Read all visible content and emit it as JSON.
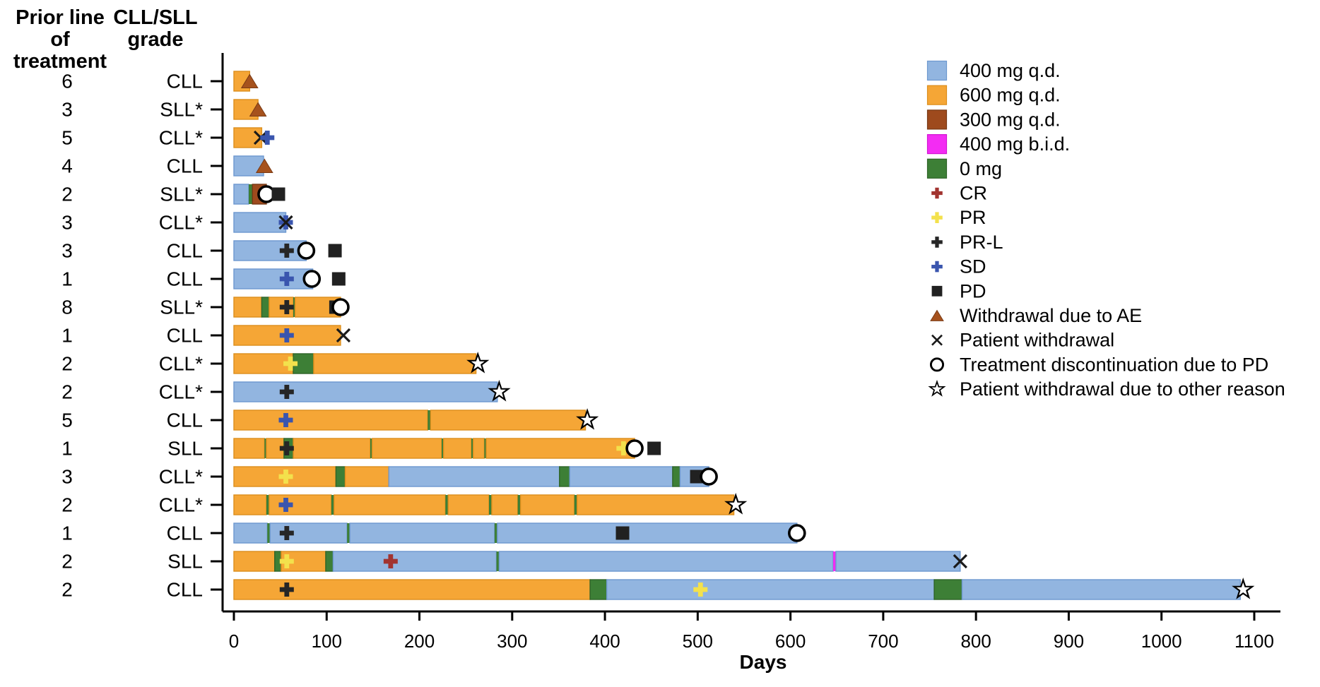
{
  "headers": {
    "prior_line": [
      "Prior line",
      "of treatment"
    ],
    "grade": [
      "CLL/SLL",
      "grade"
    ]
  },
  "axis": {
    "label": "Days",
    "ticks": [
      0,
      100,
      200,
      300,
      400,
      500,
      600,
      700,
      800,
      900,
      1000,
      1100
    ]
  },
  "colors": {
    "dose": {
      "400": "#92b5e0",
      "600": "#f5a636",
      "300": "#9e4a1d",
      "400bid": "#f32cf3",
      "0": "#3d7f36"
    },
    "doseEdge": {
      "400": "#6d98cf",
      "600": "#dc8e1c",
      "300": "#773916",
      "400bid": "#d214d2",
      "0": "#2f6428"
    },
    "marker": {
      "CR": "#a23430",
      "PR": "#f3e14c",
      "PRL": "#262626",
      "SD": "#3a55ae",
      "PD": "#212121",
      "AE": "#a6521d"
    },
    "axis": "#000000"
  },
  "legend": {
    "dose_items": [
      {
        "dose": "400",
        "label": "400 mg q.d."
      },
      {
        "dose": "600",
        "label": "600 mg q.d."
      },
      {
        "dose": "300",
        "label": "300 mg q.d."
      },
      {
        "dose": "400bid",
        "label": "400 mg b.i.d."
      },
      {
        "dose": "0",
        "label": "0 mg"
      }
    ],
    "marker_items": [
      {
        "type": "CR",
        "label": "CR"
      },
      {
        "type": "PR",
        "label": "PR"
      },
      {
        "type": "PRL",
        "label": "PR-L"
      },
      {
        "type": "SD",
        "label": "SD"
      },
      {
        "type": "PD",
        "label": "PD"
      },
      {
        "type": "AE",
        "label": "Withdrawal due to AE"
      },
      {
        "type": "PW",
        "label": "Patient withdrawal"
      },
      {
        "type": "TD",
        "label": "Treatment discontinuation due to PD"
      },
      {
        "type": "OTHER",
        "label": "Patient withdrawal due to other reason"
      }
    ]
  },
  "chart_data": {
    "type": "swimmer-bar",
    "x_unit": "Days",
    "x_range": [
      0,
      1100
    ],
    "rows": [
      {
        "prior": "6",
        "grade": "CLL",
        "segments": [
          {
            "dose": "600",
            "start": 0,
            "end": 17
          }
        ],
        "markers": [
          {
            "type": "AE",
            "day": 17
          }
        ]
      },
      {
        "prior": "3",
        "grade": "SLL*",
        "segments": [
          {
            "dose": "600",
            "start": 0,
            "end": 26
          }
        ],
        "markers": [
          {
            "type": "AE",
            "day": 26
          }
        ]
      },
      {
        "prior": "5",
        "grade": "CLL*",
        "segments": [
          {
            "dose": "600",
            "start": 0,
            "end": 30
          }
        ],
        "markers": [
          {
            "type": "PW",
            "day": 29
          },
          {
            "type": "SD",
            "day": 36
          }
        ]
      },
      {
        "prior": "4",
        "grade": "CLL",
        "segments": [
          {
            "dose": "400",
            "start": 0,
            "end": 32
          }
        ],
        "markers": [
          {
            "type": "AE",
            "day": 33
          }
        ]
      },
      {
        "prior": "2",
        "grade": "SLL*",
        "segments": [
          {
            "dose": "400",
            "start": 0,
            "end": 16
          },
          {
            "dose": "0",
            "start": 16,
            "end": 20
          },
          {
            "dose": "300",
            "start": 20,
            "end": 35
          }
        ],
        "markers": [
          {
            "type": "TD",
            "day": 35
          },
          {
            "type": "PD",
            "day": 48
          }
        ]
      },
      {
        "prior": "3",
        "grade": "CLL*",
        "segments": [
          {
            "dose": "400",
            "start": 0,
            "end": 56
          }
        ],
        "markers": [
          {
            "type": "SD",
            "day": 56
          },
          {
            "type": "PW",
            "day": 56
          }
        ]
      },
      {
        "prior": "3",
        "grade": "CLL",
        "segments": [
          {
            "dose": "400",
            "start": 0,
            "end": 78
          }
        ],
        "markers": [
          {
            "type": "PRL",
            "day": 57
          },
          {
            "type": "TD",
            "day": 78
          },
          {
            "type": "PD",
            "day": 109
          }
        ]
      },
      {
        "prior": "1",
        "grade": "CLL",
        "segments": [
          {
            "dose": "400",
            "start": 0,
            "end": 85
          }
        ],
        "markers": [
          {
            "type": "SD",
            "day": 57
          },
          {
            "type": "TD",
            "day": 84
          },
          {
            "type": "PD",
            "day": 113
          }
        ]
      },
      {
        "prior": "8",
        "grade": "SLL*",
        "segments": [
          {
            "dose": "600",
            "start": 0,
            "end": 30
          },
          {
            "dose": "0",
            "start": 30,
            "end": 38
          },
          {
            "dose": "600",
            "start": 38,
            "end": 64
          },
          {
            "dose": "0",
            "start": 64,
            "end": 66
          },
          {
            "dose": "600",
            "start": 66,
            "end": 115
          }
        ],
        "markers": [
          {
            "type": "PRL",
            "day": 57
          },
          {
            "type": "PD",
            "day": 110
          },
          {
            "type": "TD",
            "day": 115
          }
        ]
      },
      {
        "prior": "1",
        "grade": "CLL",
        "segments": [
          {
            "dose": "600",
            "start": 0,
            "end": 115
          }
        ],
        "markers": [
          {
            "type": "SD",
            "day": 57
          },
          {
            "type": "PW",
            "day": 118
          }
        ]
      },
      {
        "prior": "2",
        "grade": "CLL*",
        "segments": [
          {
            "dose": "600",
            "start": 0,
            "end": 64
          },
          {
            "dose": "0",
            "start": 64,
            "end": 86
          },
          {
            "dose": "600",
            "start": 86,
            "end": 261
          }
        ],
        "markers": [
          {
            "type": "PR",
            "day": 61
          },
          {
            "type": "OTHER",
            "day": 263
          }
        ]
      },
      {
        "prior": "2",
        "grade": "CLL*",
        "segments": [
          {
            "dose": "400",
            "start": 0,
            "end": 284
          }
        ],
        "markers": [
          {
            "type": "PRL",
            "day": 57
          },
          {
            "type": "OTHER",
            "day": 286
          }
        ]
      },
      {
        "prior": "5",
        "grade": "CLL",
        "segments": [
          {
            "dose": "600",
            "start": 0,
            "end": 209
          },
          {
            "dose": "0",
            "start": 209,
            "end": 212
          },
          {
            "dose": "600",
            "start": 212,
            "end": 379
          }
        ],
        "markers": [
          {
            "type": "SD",
            "day": 56
          },
          {
            "type": "OTHER",
            "day": 381
          }
        ]
      },
      {
        "prior": "1",
        "grade": "SLL",
        "segments": [
          {
            "dose": "600",
            "start": 0,
            "end": 33
          },
          {
            "dose": "0",
            "start": 33,
            "end": 35
          },
          {
            "dose": "600",
            "start": 35,
            "end": 54
          },
          {
            "dose": "0",
            "start": 54,
            "end": 64
          },
          {
            "dose": "600",
            "start": 64,
            "end": 147
          },
          {
            "dose": "0",
            "start": 147,
            "end": 149
          },
          {
            "dose": "600",
            "start": 149,
            "end": 224
          },
          {
            "dose": "0",
            "start": 224,
            "end": 226
          },
          {
            "dose": "600",
            "start": 226,
            "end": 256
          },
          {
            "dose": "0",
            "start": 256,
            "end": 258
          },
          {
            "dose": "600",
            "start": 258,
            "end": 270
          },
          {
            "dose": "0",
            "start": 270,
            "end": 272
          },
          {
            "dose": "600",
            "start": 272,
            "end": 432
          }
        ],
        "markers": [
          {
            "type": "PRL",
            "day": 57
          },
          {
            "type": "PR",
            "day": 420
          },
          {
            "type": "TD",
            "day": 432
          },
          {
            "type": "PD",
            "day": 453
          }
        ]
      },
      {
        "prior": "3",
        "grade": "CLL*",
        "segments": [
          {
            "dose": "600",
            "start": 0,
            "end": 110
          },
          {
            "dose": "0",
            "start": 110,
            "end": 120
          },
          {
            "dose": "600",
            "start": 120,
            "end": 167
          },
          {
            "dose": "400",
            "start": 167,
            "end": 351
          },
          {
            "dose": "0",
            "start": 351,
            "end": 362
          },
          {
            "dose": "400",
            "start": 362,
            "end": 473
          },
          {
            "dose": "0",
            "start": 473,
            "end": 481
          },
          {
            "dose": "400",
            "start": 481,
            "end": 512
          }
        ],
        "markers": [
          {
            "type": "PR",
            "day": 56
          },
          {
            "type": "PD",
            "day": 499
          },
          {
            "type": "TD",
            "day": 512
          }
        ]
      },
      {
        "prior": "2",
        "grade": "CLL*",
        "segments": [
          {
            "dose": "600",
            "start": 0,
            "end": 35
          },
          {
            "dose": "0",
            "start": 35,
            "end": 38
          },
          {
            "dose": "600",
            "start": 38,
            "end": 105
          },
          {
            "dose": "0",
            "start": 105,
            "end": 108
          },
          {
            "dose": "600",
            "start": 108,
            "end": 228
          },
          {
            "dose": "0",
            "start": 228,
            "end": 231
          },
          {
            "dose": "600",
            "start": 231,
            "end": 275
          },
          {
            "dose": "0",
            "start": 275,
            "end": 278
          },
          {
            "dose": "600",
            "start": 278,
            "end": 306
          },
          {
            "dose": "0",
            "start": 306,
            "end": 309
          },
          {
            "dose": "600",
            "start": 309,
            "end": 367
          },
          {
            "dose": "0",
            "start": 367,
            "end": 370
          },
          {
            "dose": "600",
            "start": 370,
            "end": 539
          }
        ],
        "markers": [
          {
            "type": "SD",
            "day": 56
          },
          {
            "type": "OTHER",
            "day": 541
          }
        ]
      },
      {
        "prior": "1",
        "grade": "CLL",
        "segments": [
          {
            "dose": "400",
            "start": 0,
            "end": 36
          },
          {
            "dose": "0",
            "start": 36,
            "end": 39
          },
          {
            "dose": "400",
            "start": 39,
            "end": 122
          },
          {
            "dose": "0",
            "start": 122,
            "end": 125
          },
          {
            "dose": "400",
            "start": 125,
            "end": 281
          },
          {
            "dose": "0",
            "start": 281,
            "end": 284
          },
          {
            "dose": "400",
            "start": 284,
            "end": 607
          }
        ],
        "markers": [
          {
            "type": "PRL",
            "day": 57
          },
          {
            "type": "PD",
            "day": 419
          },
          {
            "type": "TD",
            "day": 607
          }
        ]
      },
      {
        "prior": "2",
        "grade": "SLL",
        "segments": [
          {
            "dose": "600",
            "start": 0,
            "end": 44
          },
          {
            "dose": "0",
            "start": 44,
            "end": 51
          },
          {
            "dose": "600",
            "start": 51,
            "end": 99
          },
          {
            "dose": "0",
            "start": 99,
            "end": 107
          },
          {
            "dose": "400",
            "start": 107,
            "end": 283
          },
          {
            "dose": "0",
            "start": 283,
            "end": 286
          },
          {
            "dose": "400",
            "start": 286,
            "end": 646
          },
          {
            "dose": "400bid",
            "start": 646,
            "end": 649
          },
          {
            "dose": "400",
            "start": 649,
            "end": 783
          }
        ],
        "markers": [
          {
            "type": "PR",
            "day": 57
          },
          {
            "type": "CR",
            "day": 169
          },
          {
            "type": "PW",
            "day": 783
          }
        ]
      },
      {
        "prior": "2",
        "grade": "CLL",
        "segments": [
          {
            "dose": "600",
            "start": 0,
            "end": 384
          },
          {
            "dose": "0",
            "start": 384,
            "end": 402
          },
          {
            "dose": "400",
            "start": 402,
            "end": 755
          },
          {
            "dose": "0",
            "start": 755,
            "end": 785
          },
          {
            "dose": "400",
            "start": 785,
            "end": 1085
          }
        ],
        "markers": [
          {
            "type": "PRL",
            "day": 57
          },
          {
            "type": "PR",
            "day": 503
          },
          {
            "type": "OTHER",
            "day": 1088
          }
        ]
      }
    ]
  }
}
